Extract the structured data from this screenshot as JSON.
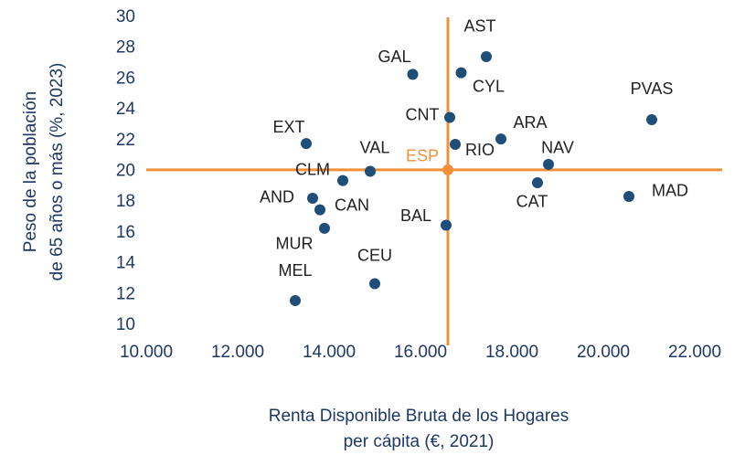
{
  "chart_data": {
    "type": "scatter",
    "x_label": [
      "Renta Disponible Bruta de los Hogares",
      "per cápita (€, 2021)"
    ],
    "y_label": [
      "Peso de la población",
      "de 65 años o más (%, 2023)"
    ],
    "color": "#1f4e79",
    "reference_color": "#f0913a",
    "xlim": [
      10000,
      22000
    ],
    "xticks": [
      {
        "value": 10000,
        "label": "10.000"
      },
      {
        "value": 12000,
        "label": "12.000"
      },
      {
        "value": 14000,
        "label": "14.000"
      },
      {
        "value": 16000,
        "label": "16.000"
      },
      {
        "value": 18000,
        "label": "18.000"
      },
      {
        "value": 20000,
        "label": "20.000"
      },
      {
        "value": 22000,
        "label": "22.000"
      }
    ],
    "ylim": [
      10,
      30
    ],
    "yticks": [
      10,
      12,
      14,
      16,
      18,
      20,
      22,
      24,
      26,
      28,
      30
    ],
    "points": [
      {
        "label": "AST",
        "x": 17440,
        "y": 27.45
      },
      {
        "label": "GAL",
        "x": 15830,
        "y": 26.3
      },
      {
        "label": "CYL",
        "x": 16890,
        "y": 26.4
      },
      {
        "label": "PVAS",
        "x": 21060,
        "y": 23.35
      },
      {
        "label": "MAD",
        "x": 20560,
        "y": 18.37
      },
      {
        "label": "NAV",
        "x": 18800,
        "y": 20.45
      },
      {
        "label": "CAT",
        "x": 18560,
        "y": 19.26
      },
      {
        "label": "ARA",
        "x": 17760,
        "y": 22.1
      },
      {
        "label": "CNT",
        "x": 16640,
        "y": 23.5
      },
      {
        "label": "RIO",
        "x": 16760,
        "y": 21.75
      },
      {
        "label": "ESP",
        "x": 16600,
        "y": 20.1,
        "color": "#f0913a"
      },
      {
        "label": "BAL",
        "x": 16560,
        "y": 16.5
      },
      {
        "label": "VAL",
        "x": 14900,
        "y": 20.0
      },
      {
        "label": "CLM",
        "x": 14300,
        "y": 19.4
      },
      {
        "label": "EXT",
        "x": 13500,
        "y": 21.8
      },
      {
        "label": "AND",
        "x": 13640,
        "y": 18.25
      },
      {
        "label": "CAN",
        "x": 13800,
        "y": 17.5
      },
      {
        "label": "MUR",
        "x": 13900,
        "y": 16.3
      },
      {
        "label": "CEU",
        "x": 15000,
        "y": 12.7
      },
      {
        "label": "MEL",
        "x": 13260,
        "y": 11.6
      }
    ]
  }
}
